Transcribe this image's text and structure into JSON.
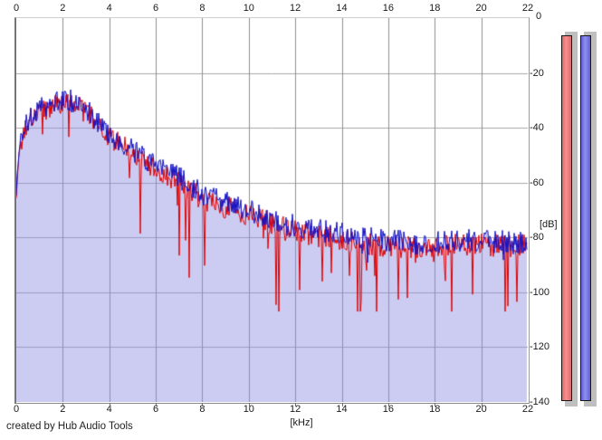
{
  "credit": "created by Hub Audio Tools",
  "axes": {
    "x": {
      "unit_label": "[kHz]",
      "min": 0,
      "max": 22,
      "tick_step": 2,
      "ticks": [
        "0",
        "2",
        "4",
        "6",
        "8",
        "10",
        "12",
        "14",
        "16",
        "18",
        "20",
        "22"
      ]
    },
    "y": {
      "unit_label": "[dB]",
      "min": -140,
      "max": 0,
      "tick_step": 20,
      "ticks": [
        "0",
        "-20",
        "-40",
        "-60",
        "-80",
        "-100",
        "-120",
        "-140"
      ]
    }
  },
  "colors": {
    "plot_background": "#ffffff",
    "vertical_grid": "#8f8f8f",
    "horizontal_grid": "#a8a8a8",
    "red_trace": "#e10000",
    "blue_trace": "#1212c8",
    "area_fill": "rgba(141,141,227,0.45)",
    "meter_shadow": "#bfbfbf"
  },
  "meters": [
    {
      "name": "left-level-meter",
      "color_center": "#fa8f8f",
      "color_edge": "#d96a6a",
      "top_db": -6
    },
    {
      "name": "right-level-meter",
      "color_center": "#8f8fee",
      "color_edge": "#5f5fd8",
      "top_db": -6
    }
  ],
  "chart_data": {
    "type": "line",
    "title": "",
    "xlabel": "[kHz]",
    "ylabel": "[dB]",
    "xlim": [
      0,
      22
    ],
    "ylim": [
      -140,
      0
    ],
    "grid": true,
    "x_grid_step_khz": 2,
    "y_grid_step_db": 20,
    "description": "Two-channel audio FFT spectrum; jagged noisy traces around smooth envelopes, lavender fill under blue trace, red trace shows deeper notches",
    "envelope_x_khz": [
      0,
      0.15,
      0.4,
      0.8,
      1.3,
      1.8,
      2.1,
      2.6,
      3.2,
      4,
      5,
      6,
      7,
      8,
      9,
      10,
      11,
      12,
      13,
      14,
      15,
      16,
      17,
      18,
      19,
      20,
      21,
      22
    ],
    "series": [
      {
        "name": "red-channel-spectrum",
        "color": "#e10000",
        "envelope_db": [
          -63,
          -47,
          -39,
          -35,
          -33,
          -31,
          -30.5,
          -32,
          -36,
          -43,
          -49,
          -55,
          -60,
          -66,
          -69,
          -72,
          -75,
          -78,
          -79.5,
          -80.5,
          -82,
          -83,
          -83.5,
          -83.5,
          -82.5,
          -82.5,
          -83,
          -83
        ]
      },
      {
        "name": "blue-channel-spectrum",
        "color": "#1212c8",
        "envelope_db": [
          -62,
          -46,
          -38,
          -34,
          -32,
          -30,
          -29.5,
          -31,
          -35,
          -42,
          -48,
          -54,
          -58,
          -64,
          -67,
          -70,
          -73,
          -76,
          -77.5,
          -78.5,
          -80,
          -81,
          -82,
          -82,
          -81,
          -81,
          -82,
          -82
        ]
      }
    ],
    "noise": {
      "seed": 1337,
      "amp_db": 4.2,
      "red_dip_prob_low": 0.035,
      "red_dip_prob_mid": 0.085,
      "red_dip_prob_high": 0.105,
      "red_dip_max_db": 32,
      "blue_dip_prob": 0.05,
      "blue_dip_max_db": 24,
      "floor_db": -107,
      "ceil_db": -22
    }
  }
}
